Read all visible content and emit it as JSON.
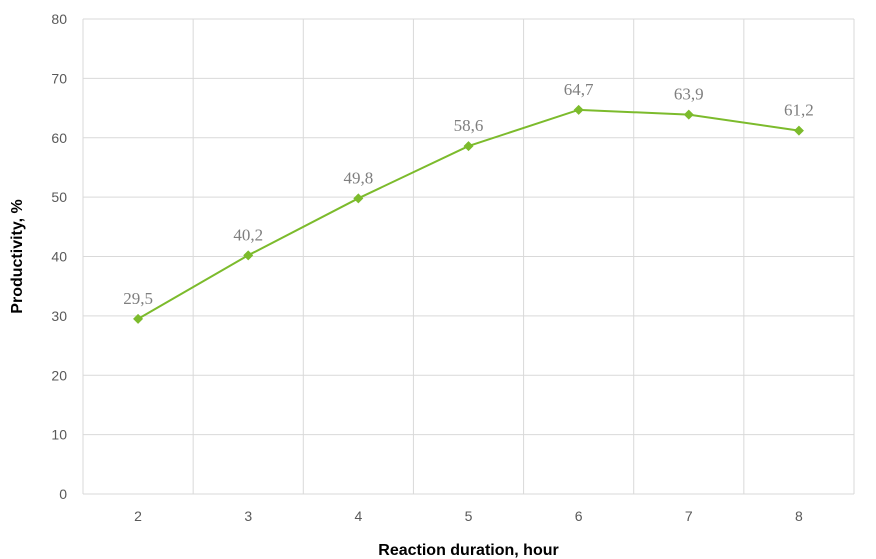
{
  "chart_data": {
    "type": "line",
    "title": "",
    "xlabel": "Reaction duration, hour",
    "ylabel": "Productivity, %",
    "x": [
      2,
      3,
      4,
      5,
      6,
      7,
      8
    ],
    "series": [
      {
        "values": [
          29.5,
          40.2,
          49.8,
          58.6,
          64.7,
          63.9,
          61.2
        ],
        "data_labels": [
          "29,5",
          "40,2",
          "49,8",
          "58,6",
          "64,7",
          "63,9",
          "61,2"
        ],
        "color": "#7cbb2c",
        "marker": "diamond"
      }
    ],
    "ylim": [
      0,
      80
    ],
    "yticks": [
      0,
      10,
      20,
      30,
      40,
      50,
      60,
      70,
      80
    ],
    "grid": true,
    "legend": "none"
  }
}
